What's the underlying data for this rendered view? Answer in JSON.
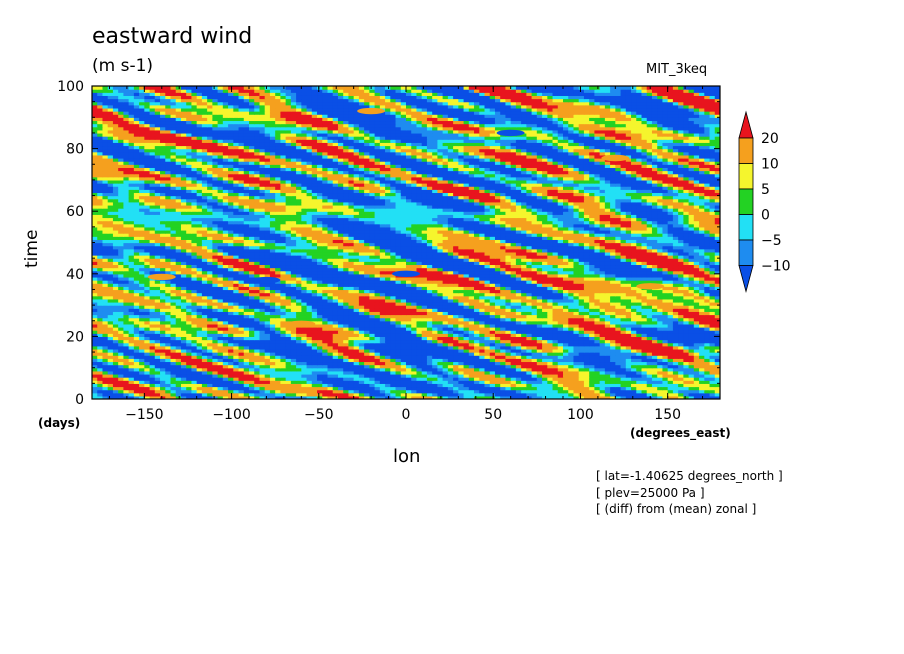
{
  "chart_data": {
    "type": "heatmap",
    "title": "eastward wind",
    "units": "(m s-1)",
    "model_label": "MIT_3keq",
    "xlabel": "lon",
    "xunit": "(degrees_east)",
    "ylabel": "time",
    "yunit": "(days)",
    "xlim": [
      -180,
      180
    ],
    "ylim": [
      0,
      100
    ],
    "xticks": [
      -150,
      -100,
      -50,
      0,
      50,
      100,
      150
    ],
    "yticks": [
      0,
      20,
      40,
      60,
      80,
      100
    ],
    "colorbar": {
      "levels": [
        "20",
        "10",
        "5",
        "0",
        "-5",
        "-10"
      ],
      "colors": [
        "#e8141e",
        "#f5a01e",
        "#f5f52d",
        "#23d223",
        "#22e0f5",
        "#1e8cf0",
        "#0a4fe6"
      ]
    },
    "annotations": [
      "[ lat=-1.40625 degrees_north ]",
      "[ plev=25000 Pa ]",
      "[ (diff) from (mean) zonal ]"
    ],
    "features": [
      {
        "lon": -20,
        "time": 92,
        "value": 20
      },
      {
        "lon": -140,
        "time": 39,
        "value": 20
      },
      {
        "lon": -60,
        "time": 24,
        "value": 20
      },
      {
        "lon": 140,
        "time": 36,
        "value": 20
      },
      {
        "lon": 120,
        "time": 77,
        "value": 20
      },
      {
        "lon": 0,
        "time": 40,
        "value": -12
      },
      {
        "lon": -80,
        "time": 38,
        "value": -12
      },
      {
        "lon": 60,
        "time": 85,
        "value": -10
      }
    ]
  }
}
